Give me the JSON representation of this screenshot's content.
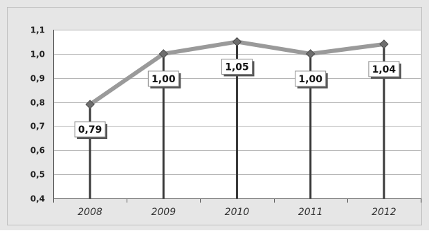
{
  "colors": {
    "outer_background": "#e6e6e6",
    "plot_background": "#ffffff",
    "gridline": "#b5b5b5",
    "series_line": "#9a9a9a",
    "marker": "#6e6e6e",
    "droplines": "#3a3a3a"
  },
  "chart_data": {
    "type": "line",
    "title": "",
    "xlabel": "",
    "ylabel": "",
    "categories": [
      "2008",
      "2009",
      "2010",
      "2011",
      "2012"
    ],
    "series": [
      {
        "values": [
          0.79,
          1.0,
          1.05,
          1.0,
          1.04
        ],
        "labels": [
          "0,79",
          "1,00",
          "1,05",
          "1,00",
          "1,04"
        ]
      }
    ],
    "ylim": [
      0.4,
      1.1
    ],
    "yticks": [
      0.4,
      0.5,
      0.6,
      0.7,
      0.8,
      0.9,
      1.0,
      1.1
    ],
    "ytick_labels": [
      "0,4",
      "0,5",
      "0,6",
      "0,7",
      "0,8",
      "0,9",
      "1,0",
      "1,1"
    ],
    "grid": true,
    "legend": "none",
    "drop_lines": true,
    "marker": "diamond"
  }
}
